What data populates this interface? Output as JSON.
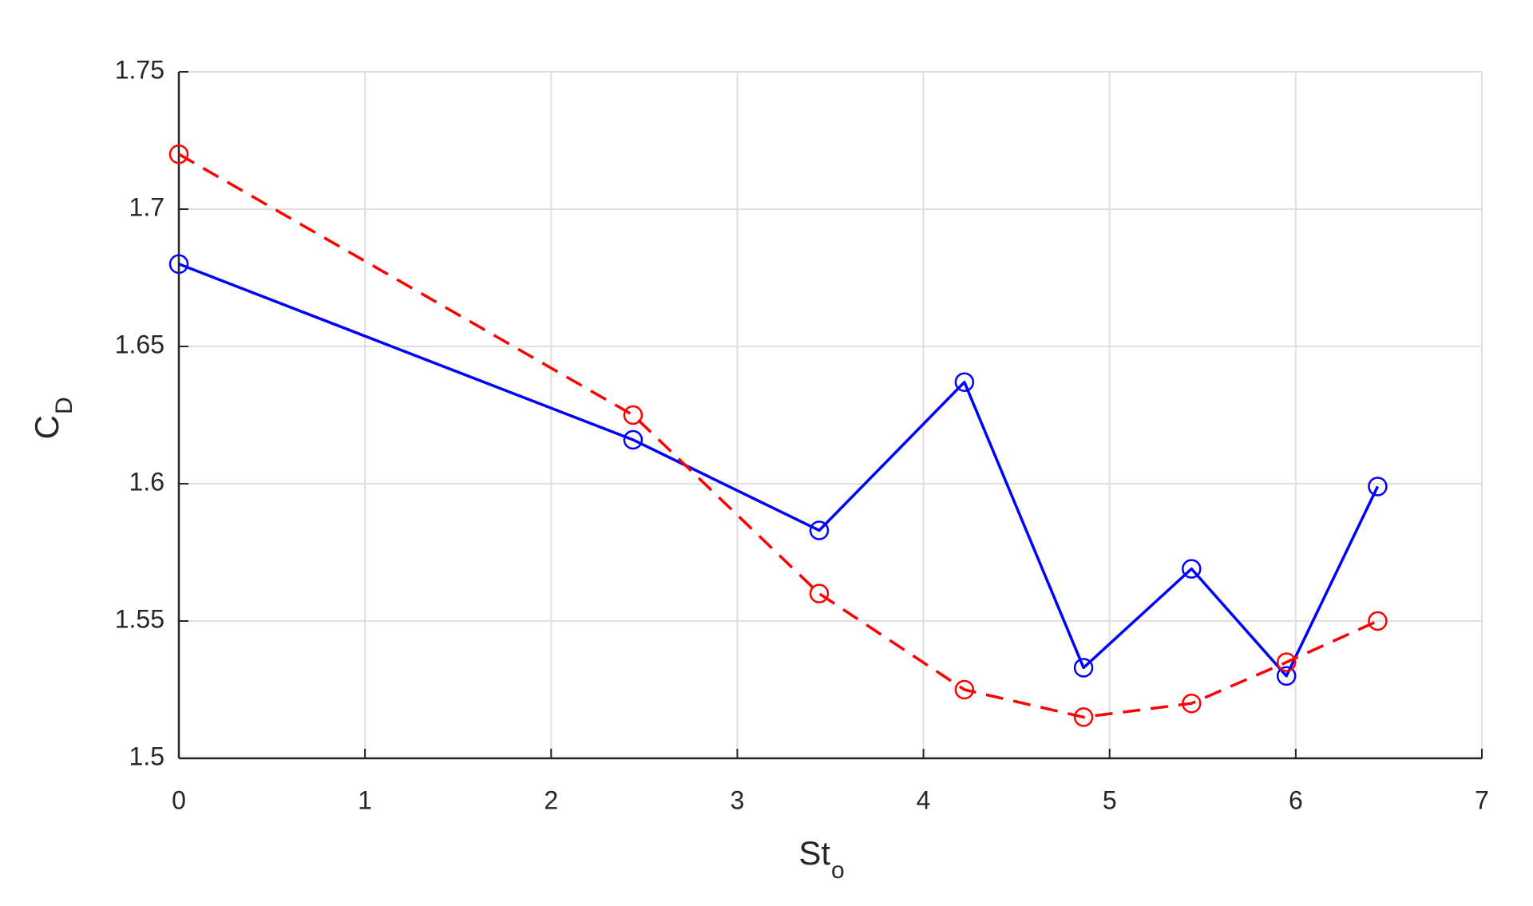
{
  "chart_data": {
    "type": "line",
    "xlabel": {
      "text": "St",
      "subscript": "o"
    },
    "ylabel": {
      "text": "C",
      "subscript": "D"
    },
    "xlim": [
      0,
      7
    ],
    "xticks": [
      0,
      1,
      2,
      3,
      4,
      5,
      6,
      7
    ],
    "ylim": [
      1.5,
      1.75
    ],
    "yticks": [
      1.5,
      1.55,
      1.6,
      1.65,
      1.7,
      1.75
    ],
    "grid": true,
    "series": [
      {
        "color": "#0000ff",
        "dash": "solid",
        "marker": "circle",
        "x": [
          0,
          2.44,
          3.44,
          4.22,
          4.86,
          5.44,
          5.95,
          6.44
        ],
        "values": [
          1.68,
          1.616,
          1.583,
          1.637,
          1.533,
          1.569,
          1.53,
          1.599
        ]
      },
      {
        "color": "#ff0000",
        "dash": "dashed",
        "marker": "circle",
        "x": [
          0,
          2.44,
          3.44,
          4.22,
          4.86,
          5.44,
          5.95,
          6.44
        ],
        "values": [
          1.72,
          1.625,
          1.56,
          1.525,
          1.515,
          1.52,
          1.535,
          1.55
        ]
      }
    ]
  }
}
